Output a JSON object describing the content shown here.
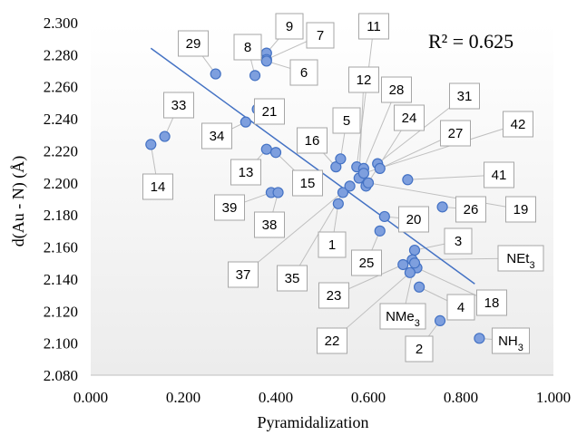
{
  "chart_data": {
    "type": "scatter",
    "xlabel": "Pyramidalization",
    "ylabel": "d(Au - N)   (Å)",
    "annotation": "R² = 0.625",
    "xlim": [
      0.0,
      1.0
    ],
    "ylim": [
      2.08,
      2.3
    ],
    "xticks": [
      "0.000",
      "0.200",
      "0.400",
      "0.600",
      "0.800",
      "1.000"
    ],
    "yticks": [
      "2.080",
      "2.100",
      "2.120",
      "2.140",
      "2.160",
      "2.180",
      "2.200",
      "2.220",
      "2.240",
      "2.260",
      "2.280",
      "2.300"
    ],
    "grid": false,
    "trendline": {
      "x": [
        0.13,
        0.83
      ],
      "y": [
        2.284,
        2.137
      ]
    },
    "point_color": "#7e9fde",
    "line_color": "#4472c4",
    "points": [
      {
        "label": "29",
        "x": 0.27,
        "y": 2.268
      },
      {
        "label": "8",
        "x": 0.355,
        "y": 2.267
      },
      {
        "label": "9",
        "x": 0.38,
        "y": 2.281
      },
      {
        "label": "7",
        "x": 0.38,
        "y": 2.277
      },
      {
        "label": "6",
        "x": 0.38,
        "y": 2.276
      },
      {
        "label": "21",
        "x": 0.36,
        "y": 2.246
      },
      {
        "label": "34",
        "x": 0.335,
        "y": 2.238
      },
      {
        "label": "33",
        "x": 0.16,
        "y": 2.229
      },
      {
        "label": "14",
        "x": 0.13,
        "y": 2.224
      },
      {
        "label": "13",
        "x": 0.38,
        "y": 2.221
      },
      {
        "label": "15",
        "x": 0.4,
        "y": 2.219
      },
      {
        "label": "39",
        "x": 0.39,
        "y": 2.194
      },
      {
        "label": "38",
        "x": 0.405,
        "y": 2.194
      },
      {
        "label": "16",
        "x": 0.53,
        "y": 2.21
      },
      {
        "label": "5",
        "x": 0.54,
        "y": 2.215
      },
      {
        "label": "1",
        "x": 0.535,
        "y": 2.187
      },
      {
        "label": "35",
        "x": 0.545,
        "y": 2.194
      },
      {
        "label": "37",
        "x": 0.56,
        "y": 2.198
      },
      {
        "label": "11",
        "x": 0.575,
        "y": 2.21
      },
      {
        "label": "12",
        "x": 0.58,
        "y": 2.203
      },
      {
        "label": "28",
        "x": 0.59,
        "y": 2.209
      },
      {
        "label": "24",
        "x": 0.595,
        "y": 2.198
      },
      {
        "label": "31",
        "x": 0.62,
        "y": 2.212
      },
      {
        "label": "27",
        "x": 0.625,
        "y": 2.209
      },
      {
        "label": "42",
        "x": 0.59,
        "y": 2.206
      },
      {
        "label": "41",
        "x": 0.685,
        "y": 2.202
      },
      {
        "label": "19",
        "x": 0.6,
        "y": 2.2
      },
      {
        "label": "20",
        "x": 0.635,
        "y": 2.179
      },
      {
        "label": "25",
        "x": 0.625,
        "y": 2.17
      },
      {
        "label": "26",
        "x": 0.76,
        "y": 2.185
      },
      {
        "label": "3",
        "x": 0.7,
        "y": 2.158
      },
      {
        "label": "NEt3",
        "x": 0.695,
        "y": 2.152
      },
      {
        "label": "18",
        "x": 0.705,
        "y": 2.147
      },
      {
        "label": "23",
        "x": 0.675,
        "y": 2.149
      },
      {
        "label": "22",
        "x": 0.69,
        "y": 2.144
      },
      {
        "label": "4",
        "x": 0.71,
        "y": 2.135
      },
      {
        "label": "NMe3",
        "x": 0.7,
        "y": 2.15
      },
      {
        "label": "2",
        "x": 0.755,
        "y": 2.114
      },
      {
        "label": "NH3",
        "x": 0.84,
        "y": 2.103
      }
    ]
  }
}
